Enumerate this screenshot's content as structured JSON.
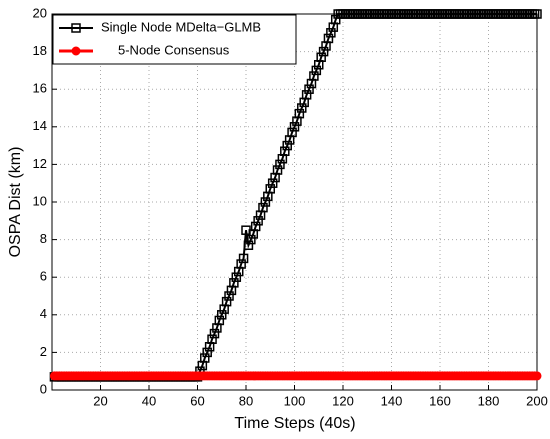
{
  "chart_data": {
    "type": "line",
    "xlabel": "Time Steps (40s)",
    "ylabel": "OSPA Dist (km)",
    "x": [
      1,
      2,
      3,
      4,
      5,
      6,
      7,
      8,
      9,
      10,
      11,
      12,
      13,
      14,
      15,
      16,
      17,
      18,
      19,
      20,
      21,
      22,
      23,
      24,
      25,
      26,
      27,
      28,
      29,
      30,
      31,
      32,
      33,
      34,
      35,
      36,
      37,
      38,
      39,
      40,
      41,
      42,
      43,
      44,
      45,
      46,
      47,
      48,
      49,
      50,
      51,
      52,
      53,
      54,
      55,
      56,
      57,
      58,
      59,
      60,
      61,
      62,
      63,
      64,
      65,
      66,
      67,
      68,
      69,
      70,
      71,
      72,
      73,
      74,
      75,
      76,
      77,
      78,
      79,
      80,
      81,
      82,
      83,
      84,
      85,
      86,
      87,
      88,
      89,
      90,
      91,
      92,
      93,
      94,
      95,
      96,
      97,
      98,
      99,
      100,
      101,
      102,
      103,
      104,
      105,
      106,
      107,
      108,
      109,
      110,
      111,
      112,
      113,
      114,
      115,
      116,
      117,
      118,
      119,
      120,
      121,
      122,
      123,
      124,
      125,
      126,
      127,
      128,
      129,
      130,
      131,
      132,
      133,
      134,
      135,
      136,
      137,
      138,
      139,
      140,
      141,
      142,
      143,
      144,
      145,
      146,
      147,
      148,
      149,
      150,
      151,
      152,
      153,
      154,
      155,
      156,
      157,
      158,
      159,
      160,
      161,
      162,
      163,
      164,
      165,
      166,
      167,
      168,
      169,
      170,
      171,
      172,
      173,
      174,
      175,
      176,
      177,
      178,
      179,
      180,
      181,
      182,
      183,
      184,
      185,
      186,
      187,
      188,
      189,
      190,
      191,
      192,
      193,
      194,
      195,
      196,
      197,
      198,
      199,
      200
    ],
    "series": [
      {
        "name": "Single Node MDelta−GLMB",
        "color": "#000000",
        "marker": "square",
        "values": [
          0.7,
          0.7,
          0.7,
          0.7,
          0.7,
          0.7,
          0.7,
          0.7,
          0.7,
          0.7,
          0.7,
          0.7,
          0.7,
          0.7,
          0.7,
          0.7,
          0.7,
          0.7,
          0.7,
          0.7,
          0.7,
          0.7,
          0.7,
          0.7,
          0.7,
          0.7,
          0.7,
          0.7,
          0.7,
          0.7,
          0.7,
          0.7,
          0.7,
          0.7,
          0.7,
          0.7,
          0.7,
          0.7,
          0.7,
          0.7,
          0.7,
          0.7,
          0.7,
          0.7,
          0.7,
          0.7,
          0.7,
          0.7,
          0.7,
          0.7,
          0.7,
          0.7,
          0.7,
          0.7,
          0.7,
          0.7,
          0.7,
          0.7,
          0.7,
          0.7,
          1.0,
          1.3,
          1.7,
          2.0,
          2.3,
          2.7,
          3.0,
          3.3,
          3.7,
          4.0,
          4.3,
          4.7,
          5.0,
          5.3,
          5.7,
          6.0,
          6.3,
          6.7,
          7.0,
          8.5,
          7.7,
          8.0,
          8.3,
          8.7,
          9.0,
          9.3,
          9.7,
          10.0,
          10.3,
          10.7,
          11.0,
          11.3,
          11.7,
          12.0,
          12.3,
          12.7,
          13.0,
          13.3,
          13.7,
          14.0,
          14.3,
          14.7,
          15.0,
          15.3,
          15.7,
          16.0,
          16.3,
          16.7,
          17.0,
          17.3,
          17.7,
          18.0,
          18.3,
          18.7,
          19.0,
          19.3,
          19.7,
          20.0,
          20,
          20,
          20,
          20,
          20,
          20,
          20,
          20,
          20,
          20,
          20,
          20,
          20,
          20,
          20,
          20,
          20,
          20,
          20,
          20,
          20,
          20,
          20,
          20,
          20,
          20,
          20,
          20,
          20,
          20,
          20,
          20,
          20,
          20,
          20,
          20,
          20,
          20,
          20,
          20,
          20,
          20,
          20,
          20,
          20,
          20,
          20,
          20,
          20,
          20,
          20,
          20,
          20,
          20,
          20,
          20,
          20,
          20,
          20,
          20,
          20,
          20,
          20,
          20,
          20,
          20,
          20,
          20,
          20,
          20,
          20,
          20,
          20,
          20,
          20,
          20,
          20,
          20,
          20,
          20,
          20,
          20
        ]
      },
      {
        "name": "5-Node Consensus",
        "color": "#ff0000",
        "marker": "circle",
        "values": [
          0.75,
          0.75,
          0.75,
          0.75,
          0.75,
          0.75,
          0.75,
          0.75,
          0.75,
          0.75,
          0.75,
          0.75,
          0.75,
          0.75,
          0.75,
          0.75,
          0.75,
          0.75,
          0.75,
          0.75,
          0.75,
          0.75,
          0.75,
          0.75,
          0.75,
          0.75,
          0.75,
          0.75,
          0.75,
          0.75,
          0.75,
          0.75,
          0.75,
          0.75,
          0.75,
          0.75,
          0.75,
          0.75,
          0.75,
          0.75,
          0.75,
          0.75,
          0.75,
          0.75,
          0.75,
          0.75,
          0.75,
          0.75,
          0.75,
          0.75,
          0.75,
          0.75,
          0.75,
          0.75,
          0.75,
          0.75,
          0.75,
          0.75,
          0.75,
          0.75,
          0.75,
          0.75,
          0.75,
          0.75,
          0.75,
          0.75,
          0.75,
          0.75,
          0.75,
          0.75,
          0.75,
          0.75,
          0.75,
          0.75,
          0.75,
          0.75,
          0.75,
          0.75,
          0.75,
          0.75,
          0.75,
          0.75,
          0.75,
          0.75,
          0.75,
          0.75,
          0.75,
          0.75,
          0.75,
          0.75,
          0.75,
          0.75,
          0.75,
          0.75,
          0.75,
          0.75,
          0.75,
          0.75,
          0.75,
          0.75,
          0.75,
          0.75,
          0.75,
          0.75,
          0.75,
          0.75,
          0.75,
          0.75,
          0.75,
          0.75,
          0.75,
          0.75,
          0.75,
          0.75,
          0.75,
          0.75,
          0.75,
          0.75,
          0.75,
          0.75,
          0.75,
          0.75,
          0.75,
          0.75,
          0.75,
          0.75,
          0.75,
          0.75,
          0.75,
          0.75,
          0.75,
          0.75,
          0.75,
          0.75,
          0.75,
          0.75,
          0.75,
          0.75,
          0.75,
          0.75,
          0.75,
          0.75,
          0.75,
          0.75,
          0.75,
          0.75,
          0.75,
          0.75,
          0.75,
          0.75,
          0.75,
          0.75,
          0.75,
          0.75,
          0.75,
          0.75,
          0.75,
          0.75,
          0.75,
          0.75,
          0.75,
          0.75,
          0.75,
          0.75,
          0.75,
          0.75,
          0.75,
          0.75,
          0.75,
          0.75,
          0.75,
          0.75,
          0.75,
          0.75,
          0.75,
          0.75,
          0.75,
          0.75,
          0.75,
          0.75,
          0.75,
          0.75,
          0.75,
          0.75,
          0.75,
          0.75,
          0.75,
          0.75,
          0.75,
          0.75,
          0.75,
          0.75,
          0.75,
          0.75,
          0.75,
          0.75,
          0.75,
          0.75,
          0.75,
          0.75
        ]
      }
    ],
    "xlim": [
      0,
      200
    ],
    "xticks": [
      20,
      40,
      60,
      80,
      100,
      120,
      140,
      160,
      180,
      200
    ],
    "ylim": [
      0,
      20
    ],
    "yticks": [
      0,
      2,
      4,
      6,
      8,
      10,
      12,
      14,
      16,
      18,
      20
    ],
    "grid": true,
    "legend": "upper left"
  }
}
